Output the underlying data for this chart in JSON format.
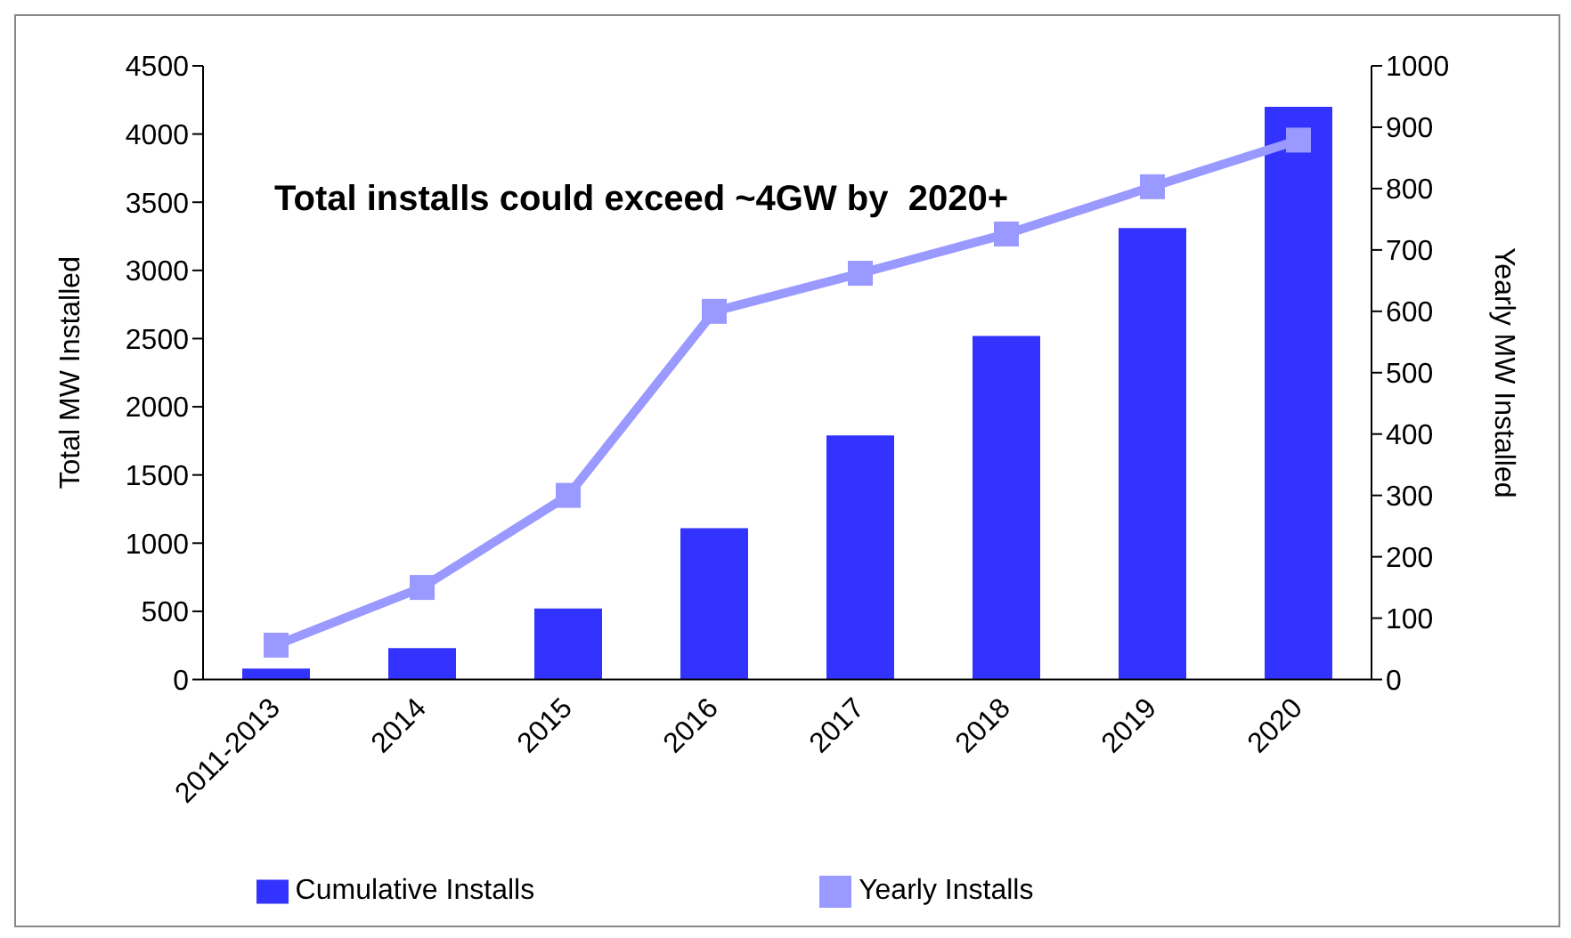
{
  "chart_data": {
    "type": "bar",
    "categories": [
      "2011-2013",
      "2014",
      "2015",
      "2016",
      "2017",
      "2018",
      "2019",
      "2020"
    ],
    "series": [
      {
        "name": "Cumulative Installs",
        "color": "#3333ff",
        "values": [
          80,
          230,
          520,
          1110,
          1790,
          2520,
          3310,
          4200
        ]
      },
      {
        "name": "Yearly Installs",
        "type": "line",
        "axis": "y2",
        "color": "#9999ff",
        "values": [
          56,
          150,
          300,
          600,
          662,
          726,
          803,
          879
        ]
      }
    ],
    "ylabel": "Total MW Installed",
    "y2label": "Yearly MW Installed",
    "ylim": [
      0,
      4500
    ],
    "yticks": [
      0,
      500,
      1000,
      1500,
      2000,
      2500,
      3000,
      3500,
      4000,
      4500
    ],
    "y2lim": [
      0,
      1000
    ],
    "y2ticks": [
      0,
      100,
      200,
      300,
      400,
      500,
      600,
      700,
      800,
      900,
      1000
    ],
    "annotations": [
      "Total installs could exceed ~4GW by  2020+"
    ],
    "grid": false,
    "legend": "bottom",
    "marker": "square"
  }
}
